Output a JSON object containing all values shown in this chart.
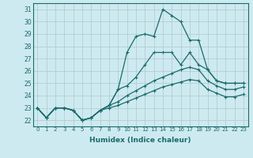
{
  "xlabel": "Humidex (Indice chaleur)",
  "ylabel": "",
  "bg_color": "#cdeaf0",
  "line_color": "#1a6b6b",
  "grid_color": "#b0c8cc",
  "xlim": [
    -0.5,
    23.5
  ],
  "ylim": [
    21.5,
    31.5
  ],
  "yticks": [
    22,
    23,
    24,
    25,
    26,
    27,
    28,
    29,
    30,
    31
  ],
  "xticks": [
    0,
    1,
    2,
    3,
    4,
    5,
    6,
    7,
    8,
    9,
    10,
    11,
    12,
    13,
    14,
    15,
    16,
    17,
    18,
    19,
    20,
    21,
    22,
    23
  ],
  "lines": [
    {
      "x": [
        0,
        1,
        2,
        3,
        4,
        5,
        6,
        7,
        8,
        9,
        10,
        11,
        12,
        13,
        14,
        15,
        16,
        17,
        18,
        19,
        20,
        21,
        22,
        23
      ],
      "y": [
        23,
        22.2,
        23,
        23,
        22.8,
        22,
        22.2,
        22.8,
        23.2,
        24.5,
        27.5,
        28.8,
        29,
        28.8,
        31,
        30.5,
        30,
        28.5,
        28.5,
        26.1,
        25.2,
        25,
        25,
        25
      ]
    },
    {
      "x": [
        0,
        1,
        2,
        3,
        4,
        5,
        6,
        7,
        8,
        9,
        10,
        11,
        12,
        13,
        14,
        15,
        16,
        17,
        18,
        19,
        20,
        21,
        22,
        23
      ],
      "y": [
        23,
        22.2,
        23,
        23,
        22.8,
        22,
        22.2,
        22.8,
        23.2,
        24.5,
        24.8,
        25.5,
        26.5,
        27.5,
        27.5,
        27.5,
        26.5,
        27.5,
        26.5,
        26.1,
        25.2,
        25,
        25,
        25
      ]
    },
    {
      "x": [
        0,
        1,
        2,
        3,
        4,
        5,
        6,
        7,
        8,
        9,
        10,
        11,
        12,
        13,
        14,
        15,
        16,
        17,
        18,
        19,
        20,
        21,
        22,
        23
      ],
      "y": [
        23,
        22.2,
        23,
        23,
        22.8,
        22,
        22.2,
        22.8,
        23.2,
        23.5,
        24.0,
        24.4,
        24.8,
        25.2,
        25.5,
        25.8,
        26.1,
        26.3,
        26.1,
        25.2,
        24.8,
        24.5,
        24.5,
        24.7
      ]
    },
    {
      "x": [
        0,
        1,
        2,
        3,
        4,
        5,
        6,
        7,
        8,
        9,
        10,
        11,
        12,
        13,
        14,
        15,
        16,
        17,
        18,
        19,
        20,
        21,
        22,
        23
      ],
      "y": [
        23,
        22.2,
        23,
        23,
        22.8,
        22,
        22.2,
        22.8,
        23.0,
        23.2,
        23.5,
        23.8,
        24.1,
        24.4,
        24.7,
        24.9,
        25.1,
        25.3,
        25.2,
        24.5,
        24.2,
        23.9,
        23.9,
        24.1
      ]
    }
  ]
}
